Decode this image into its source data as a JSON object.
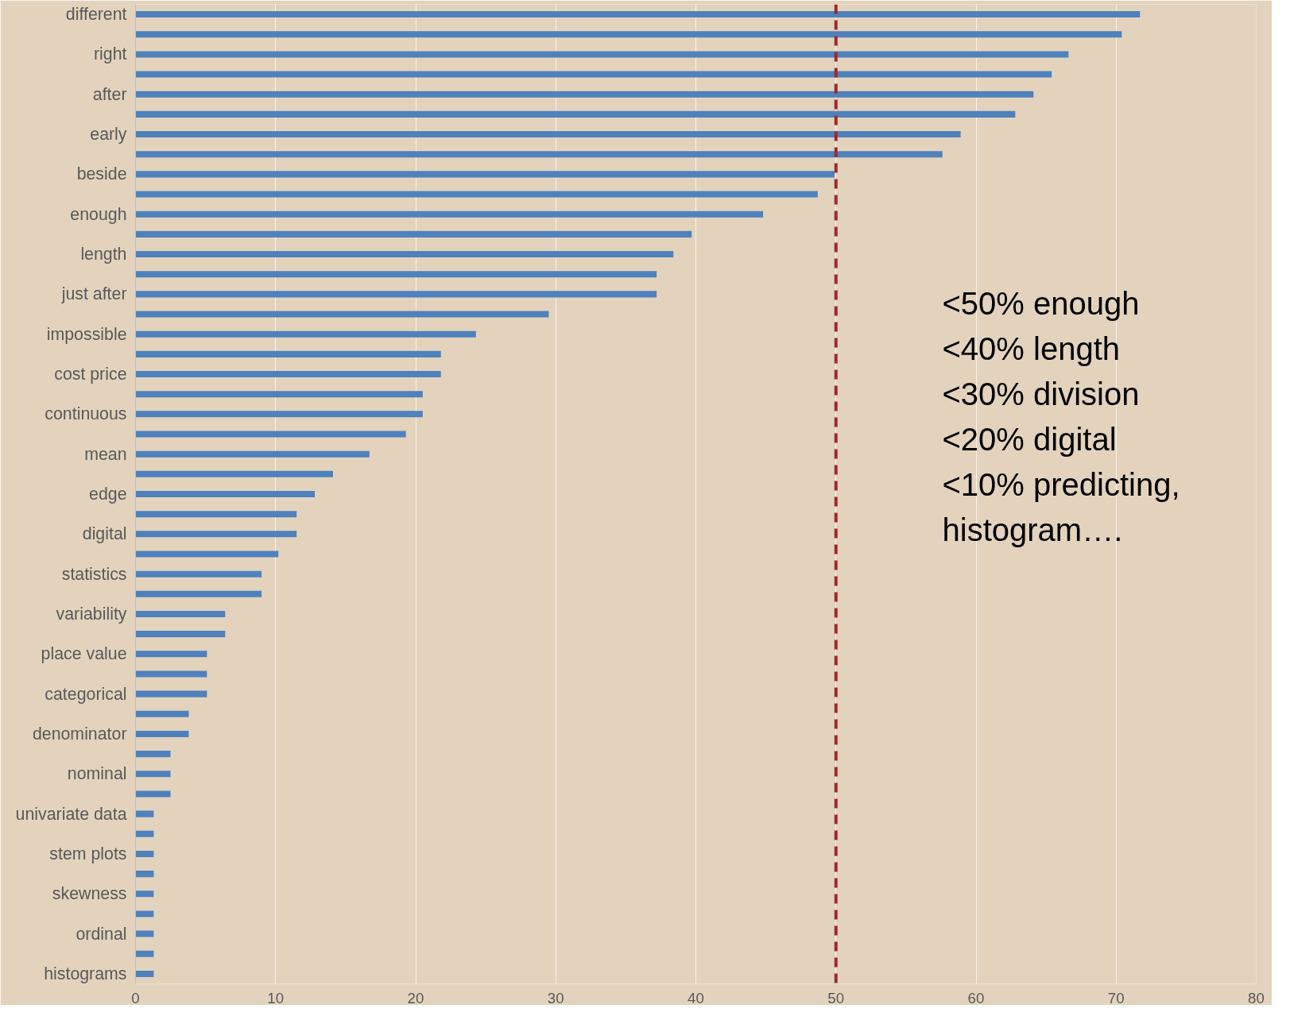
{
  "chart_data": {
    "type": "bar",
    "orientation": "horizontal",
    "categories": [
      "different",
      null,
      "right",
      null,
      "after",
      null,
      "early",
      null,
      "beside",
      null,
      "enough",
      null,
      "length",
      null,
      "just after",
      null,
      "impossible",
      null,
      "cost price",
      null,
      "continuous",
      null,
      "mean",
      null,
      "edge",
      null,
      "digital",
      null,
      "statistics",
      null,
      "variability",
      null,
      "place value",
      null,
      "categorical",
      null,
      "denominator",
      null,
      "nominal",
      null,
      "univariate data",
      null,
      "stem plots",
      null,
      "skewness",
      null,
      "ordinal",
      null,
      "histograms"
    ],
    "values": [
      71.7,
      70.4,
      66.6,
      65.4,
      64.1,
      62.8,
      58.9,
      57.6,
      49.9,
      48.7,
      44.8,
      39.7,
      38.4,
      37.2,
      37.2,
      29.5,
      24.3,
      21.8,
      21.8,
      20.5,
      20.5,
      19.3,
      16.7,
      14.1,
      12.8,
      11.5,
      11.5,
      10.2,
      9.0,
      9.0,
      6.4,
      6.4,
      5.1,
      5.1,
      5.1,
      3.8,
      3.8,
      2.5,
      2.5,
      2.5,
      1.3,
      1.3,
      1.3,
      1.3,
      1.3,
      1.3,
      1.3,
      1.3,
      1.3
    ],
    "color": "#4f81bd",
    "xlim": [
      0,
      80
    ],
    "xticks": [
      0,
      10,
      20,
      30,
      40,
      50,
      60,
      70,
      80
    ],
    "grid": "x",
    "ref_lines": [
      {
        "axis": "x",
        "value": 50,
        "color": "#a0282a",
        "line_style": "dashed"
      }
    ],
    "annotations": [
      "<50% enough",
      "<40% length",
      "<30% division",
      "<20% digital",
      "<10% predicting,",
      "histogram…."
    ]
  }
}
